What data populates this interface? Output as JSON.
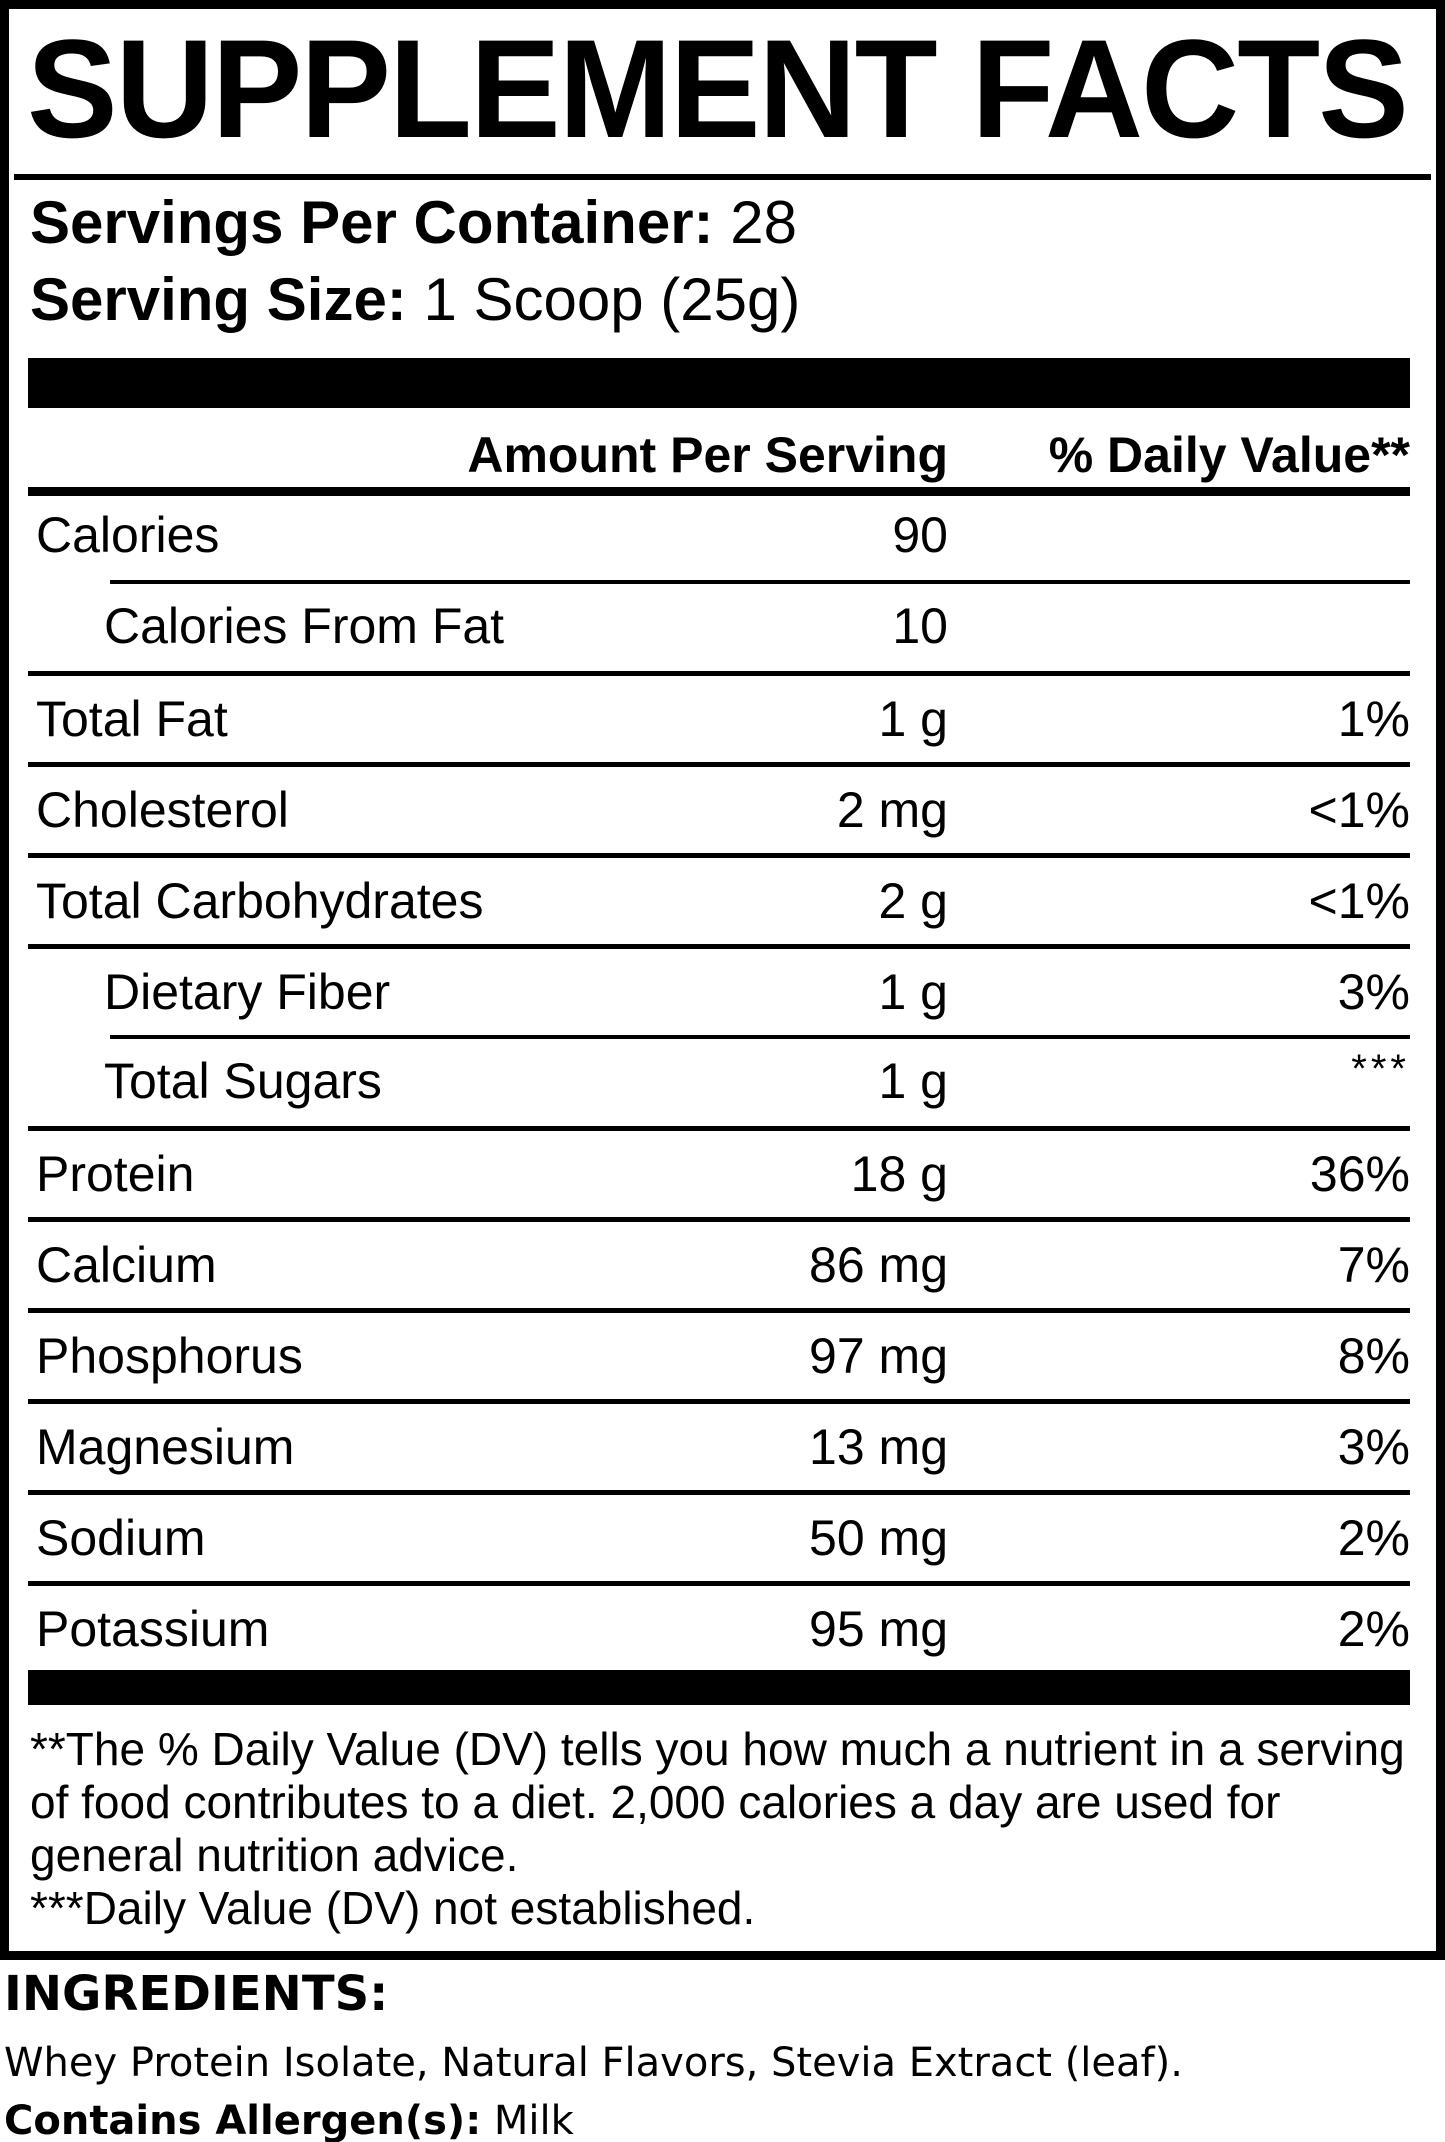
{
  "label": {
    "title": "SUPPLEMENT FACTS",
    "servings_per_container": {
      "label": "Servings Per Container:",
      "value": "28"
    },
    "serving_size": {
      "label": "Serving Size:",
      "value": "1 Scoop (25g)"
    },
    "columns": {
      "amount": "Amount Per Serving",
      "daily_value": "% Daily Value**"
    },
    "rows": [
      {
        "name": "Calories",
        "amount": "90",
        "dv": "",
        "indent": false,
        "divider": "none",
        "dv_super": false
      },
      {
        "name": "Calories From Fat",
        "amount": "10",
        "dv": "",
        "indent": true,
        "divider": "indent",
        "dv_super": false
      },
      {
        "name": "Total Fat",
        "amount": "1 g",
        "dv": "1%",
        "indent": false,
        "divider": "full",
        "dv_super": false
      },
      {
        "name": "Cholesterol",
        "amount": "2 mg",
        "dv": "<1%",
        "indent": false,
        "divider": "full",
        "dv_super": false
      },
      {
        "name": "Total Carbohydrates",
        "amount": "2 g",
        "dv": "<1%",
        "indent": false,
        "divider": "full",
        "dv_super": false
      },
      {
        "name": "Dietary Fiber",
        "amount": "1 g",
        "dv": "3%",
        "indent": true,
        "divider": "full",
        "dv_super": false
      },
      {
        "name": "Total Sugars",
        "amount": "1 g",
        "dv": "***",
        "indent": true,
        "divider": "indent",
        "dv_super": true
      },
      {
        "name": "Protein",
        "amount": "18 g",
        "dv": "36%",
        "indent": false,
        "divider": "full",
        "dv_super": false
      },
      {
        "name": "Calcium",
        "amount": "86 mg",
        "dv": "7%",
        "indent": false,
        "divider": "full",
        "dv_super": false
      },
      {
        "name": "Phosphorus",
        "amount": "97 mg",
        "dv": "8%",
        "indent": false,
        "divider": "full",
        "dv_super": false
      },
      {
        "name": "Magnesium",
        "amount": "13 mg",
        "dv": "3%",
        "indent": false,
        "divider": "full",
        "dv_super": false
      },
      {
        "name": "Sodium",
        "amount": "50 mg",
        "dv": "2%",
        "indent": false,
        "divider": "full",
        "dv_super": false
      },
      {
        "name": "Potassium",
        "amount": "95 mg",
        "dv": "2%",
        "indent": false,
        "divider": "full",
        "dv_super": false
      }
    ],
    "footnotes": [
      "**The % Daily Value (DV) tells you how much a nutrient in a serving of food contributes to a diet. 2,000 calories a day are used for general nutrition advice.",
      "***Daily Value (DV) not established."
    ]
  },
  "ingredients": {
    "heading": "INGREDIENTS:",
    "list": "Whey Protein Isolate, Natural Flavors, Stevia Extract (leaf).",
    "allergen_label": "Contains Allergen(s):",
    "allergen_value": "Milk"
  },
  "colors": {
    "ink": "#000000",
    "paper": "#ffffff"
  }
}
